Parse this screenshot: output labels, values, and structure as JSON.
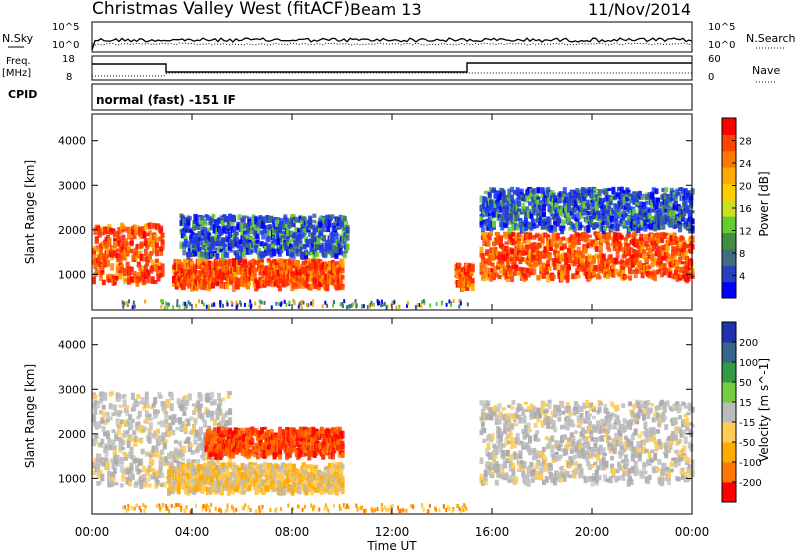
{
  "header": {
    "station": "Christmas Valley West (fitACF)",
    "beam": "Beam 13",
    "date": "11/Nov/2014"
  },
  "top_panels": {
    "nsky_label": "N.Sky",
    "nsky_hi": "10^5",
    "nsky_lo": "10^0",
    "nsearch_label": "N.Search",
    "nsearch_hi": "10^5",
    "nsearch_lo": "10^0",
    "freq_label": "Freq.",
    "freq_unit": "[MHz]",
    "freq_hi": "18",
    "freq_lo": "8",
    "nave_label": "Nave",
    "nave_hi": "60",
    "nave_lo": "0",
    "cpid_label": "CPID",
    "cpid_text": "normal (fast) -151 IF"
  },
  "chart_data": [
    {
      "type": "heatmap",
      "ylabel": "Slant Range [km]",
      "yticks": [
        1000,
        2000,
        3000,
        4000
      ],
      "ylim": [
        200,
        4600
      ],
      "colorbar": {
        "label": "Power [dB]",
        "ticks": [
          "4",
          "8",
          "12",
          "16",
          "20",
          "24",
          "28"
        ],
        "colors": [
          "#0000ff",
          "#2a3fbf",
          "#3f6f7f",
          "#3f8f3f",
          "#66cc33",
          "#ccdd22",
          "#ffcc00",
          "#ffaa00",
          "#ff7700",
          "#ff4400",
          "#ff0000"
        ]
      },
      "regions": [
        {
          "t0": 0.0,
          "t1": 2.8,
          "r0": 800,
          "r1": 2100,
          "level": "high"
        },
        {
          "t0": 3.2,
          "t1": 10.0,
          "r0": 700,
          "r1": 1300,
          "level": "high"
        },
        {
          "t0": 3.5,
          "t1": 10.2,
          "r0": 1400,
          "r1": 2300,
          "level": "low"
        },
        {
          "t0": 14.5,
          "t1": 15.2,
          "r0": 700,
          "r1": 1200,
          "level": "high"
        },
        {
          "t0": 15.5,
          "t1": 24.0,
          "r0": 900,
          "r1": 1900,
          "level": "high"
        },
        {
          "t0": 15.5,
          "t1": 24.0,
          "r0": 2000,
          "r1": 2900,
          "level": "low"
        }
      ]
    },
    {
      "type": "heatmap",
      "ylabel": "Slant Range [km]",
      "yticks": [
        1000,
        2000,
        3000,
        4000
      ],
      "ylim": [
        200,
        4600
      ],
      "colorbar": {
        "label": "Velocity [m s^-1]",
        "ticks": [
          "200",
          "100",
          "50",
          "15",
          "-15",
          "-50",
          "-100",
          "-200"
        ],
        "colors": [
          "#2233aa",
          "#336688",
          "#339944",
          "#77cc44",
          "#bbbbbb",
          "#ffcc55",
          "#ffaa00",
          "#ff7700",
          "#ff0000"
        ]
      },
      "regions": [
        {
          "t0": 0.0,
          "t1": 5.5,
          "r0": 800,
          "r1": 2900,
          "level": "near_zero"
        },
        {
          "t0": 3.0,
          "t1": 10.0,
          "r0": 700,
          "r1": 1300,
          "level": "toward_negative_small"
        },
        {
          "t0": 4.5,
          "t1": 10.0,
          "r0": 1500,
          "r1": 2100,
          "level": "negative_large"
        },
        {
          "t0": 15.5,
          "t1": 24.0,
          "r0": 900,
          "r1": 2700,
          "level": "near_zero"
        }
      ]
    }
  ],
  "time_axis": {
    "xlabel": "Time UT",
    "ticks": [
      "00:00",
      "04:00",
      "08:00",
      "12:00",
      "16:00",
      "20:00",
      "00:00"
    ]
  }
}
